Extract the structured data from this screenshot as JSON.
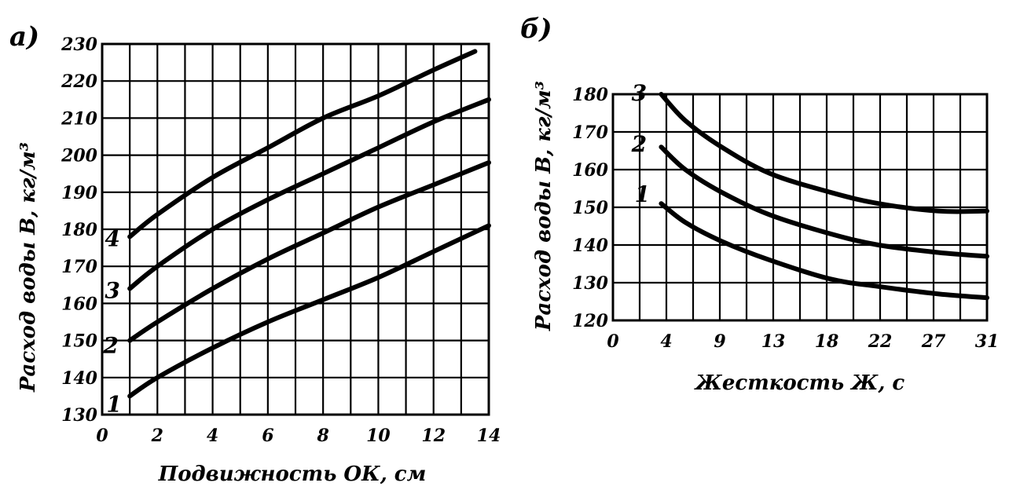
{
  "chart_data": [
    {
      "id": "a",
      "type": "line",
      "panel_label": "а)",
      "xlabel": "Подвижность ОК, см",
      "ylabel": "Расход воды В, кг/м³",
      "xlim": [
        0,
        14
      ],
      "ylim": [
        130,
        230
      ],
      "xticks": [
        0,
        2,
        4,
        6,
        8,
        10,
        12,
        14
      ],
      "yticks": [
        130,
        140,
        150,
        160,
        170,
        180,
        190,
        200,
        210,
        220,
        230
      ],
      "grid": true,
      "series": [
        {
          "name": "1",
          "x": [
            1,
            2,
            4,
            6,
            8,
            10,
            12,
            14
          ],
          "y": [
            135,
            140,
            148,
            155,
            161,
            167,
            174,
            181
          ]
        },
        {
          "name": "2",
          "x": [
            1,
            2,
            4,
            6,
            8,
            10,
            12,
            14
          ],
          "y": [
            150,
            155,
            164,
            172,
            179,
            186,
            192,
            198
          ]
        },
        {
          "name": "3",
          "x": [
            1,
            2,
            4,
            6,
            8,
            10,
            12,
            14
          ],
          "y": [
            164,
            170,
            180,
            188,
            195,
            202,
            209,
            215
          ]
        },
        {
          "name": "4",
          "x": [
            1,
            2,
            4,
            6,
            8,
            10,
            12,
            13.5
          ],
          "y": [
            178,
            184,
            194,
            202,
            210,
            216,
            223,
            228
          ]
        }
      ]
    },
    {
      "id": "b",
      "type": "line",
      "panel_label": "б)",
      "xlabel": "Жесткость Ж, с",
      "ylabel": "Расход воды В, кг/м³",
      "xlim": [
        0,
        31
      ],
      "ylim": [
        120,
        180
      ],
      "xticks": [
        "0",
        "4",
        "9",
        "13",
        "18",
        "22",
        "27",
        "31"
      ],
      "yticks": [
        120,
        130,
        140,
        150,
        160,
        170,
        180
      ],
      "grid": true,
      "series": [
        {
          "name": "1",
          "x": [
            4,
            6,
            9,
            13,
            18,
            22,
            27,
            31
          ],
          "y": [
            151,
            146,
            141,
            136,
            131,
            129,
            127,
            126
          ]
        },
        {
          "name": "2",
          "x": [
            4,
            6,
            9,
            13,
            18,
            22,
            27,
            31
          ],
          "y": [
            166,
            160,
            154,
            148,
            143,
            140,
            138,
            137
          ]
        },
        {
          "name": "3",
          "x": [
            4,
            6,
            9,
            13,
            18,
            22,
            27,
            31
          ],
          "y": [
            180,
            173,
            166,
            159,
            154,
            151,
            149,
            149
          ]
        }
      ]
    }
  ]
}
